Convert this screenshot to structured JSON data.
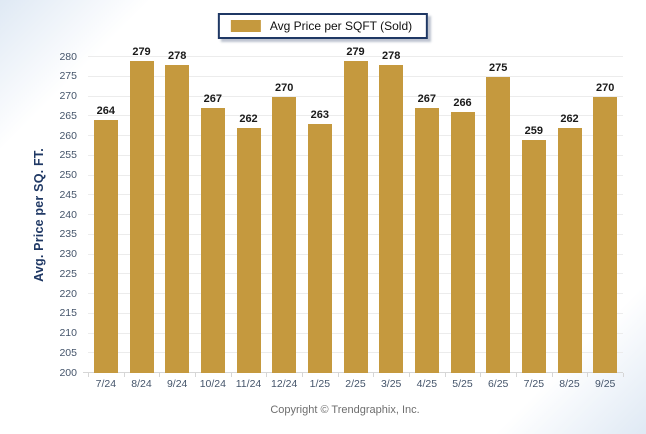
{
  "legend": {
    "label": "Avg Price per SQFT (Sold)"
  },
  "footer": {
    "text": "Copyright © Trendgraphix, Inc."
  },
  "chart_data": {
    "type": "bar",
    "title": "",
    "categories": [
      "7/24",
      "8/24",
      "9/24",
      "10/24",
      "11/24",
      "12/24",
      "1/25",
      "2/25",
      "3/25",
      "4/25",
      "5/25",
      "6/25",
      "7/25",
      "8/25",
      "9/25"
    ],
    "values": [
      264,
      279,
      278,
      267,
      262,
      270,
      263,
      279,
      278,
      267,
      266,
      275,
      259,
      262,
      270
    ],
    "series_name": "Avg Price per SQFT (Sold)",
    "xlabel": "",
    "ylabel": "Avg. Price per SQ. FT.",
    "ylim": [
      200,
      280
    ],
    "ytick_step": 5,
    "grid": true,
    "legend_position": "top-center",
    "colors": {
      "bar": "#c5993e",
      "legend_border_navy": "#1f3864",
      "axis_title": "#1f3864",
      "tick_label": "#44546a",
      "value_label": "#1a1a1a",
      "gridline": "#ececec",
      "footer_text": "#6e6e6e"
    }
  }
}
